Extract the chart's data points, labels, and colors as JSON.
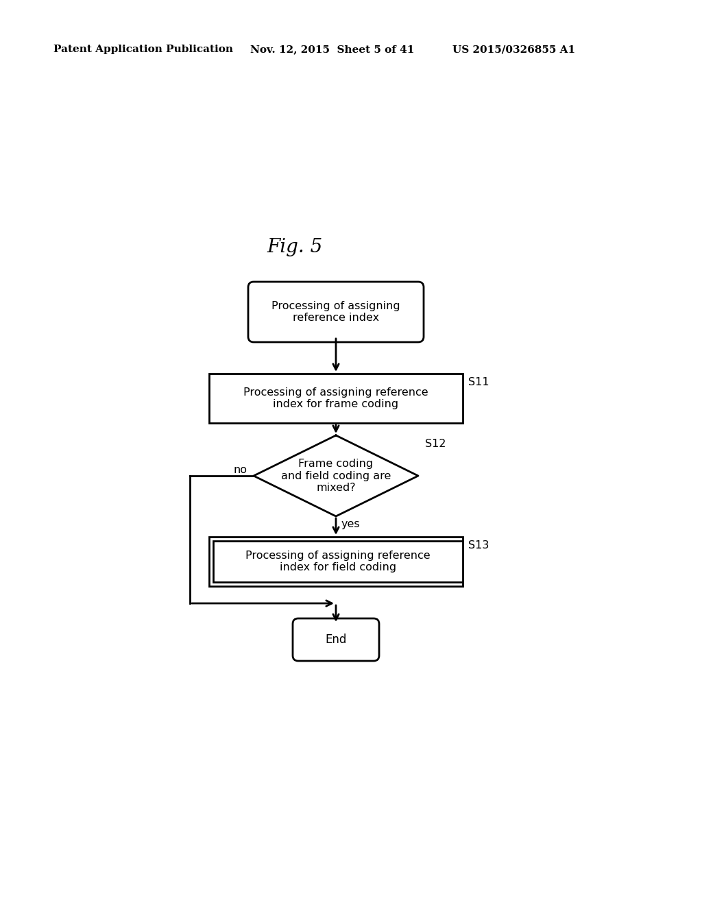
{
  "title": "Fig. 5",
  "header_left": "Patent Application Publication",
  "header_mid": "Nov. 12, 2015  Sheet 5 of 41",
  "header_right": "US 2015/0326855 A1",
  "bg_color": "#ffffff",
  "start_label": "Processing of assigning\nreference index",
  "s11_label": "Processing of assigning reference\nindex for frame coding",
  "s11_tag": "S11",
  "s12_label": "Frame coding\nand field coding are\nmixed?",
  "s12_tag": "S12",
  "s13_label": "Processing of assigning reference\nindex for field coding",
  "s13_tag": "S13",
  "end_label": "End",
  "yes_label": "yes",
  "no_label": "no"
}
